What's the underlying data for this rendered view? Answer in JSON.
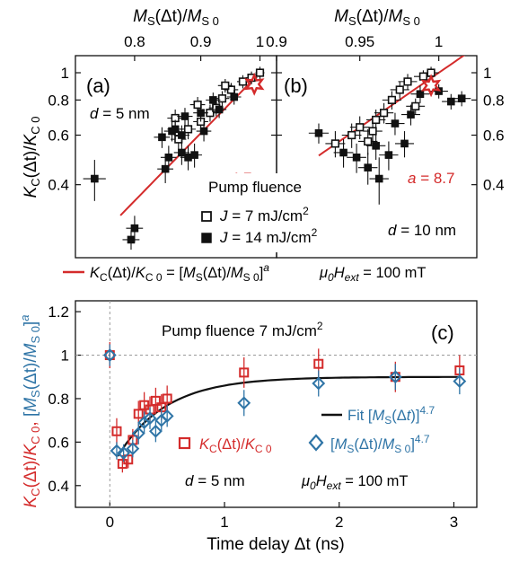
{
  "colors": {
    "red": "#d42b2b",
    "blue": "#2e74a6",
    "black": "#111111",
    "gray": "#999999"
  },
  "chart_data": [
    {
      "id": "a",
      "type": "scatter",
      "panel_label": "(a)",
      "top_axis_label": "M_S(Δt)/M_S0",
      "left_axis_label": "K_C(Δt)/K_C0",
      "x_scale": "log",
      "y_scale": "log",
      "xlim": [
        0.72,
        1.03
      ],
      "ylim": [
        0.22,
        1.15
      ],
      "x_ticks": [
        0.8,
        0.9,
        1
      ],
      "x_tick_labels": [
        "0.8",
        "0.9",
        "1"
      ],
      "y_ticks": [
        0.4,
        0.6,
        0.8,
        1
      ],
      "y_tick_labels": [
        "0.4",
        "0.6",
        "0.8",
        "1"
      ],
      "annotations": {
        "thickness": "d = 5 nm",
        "exponent": "a = 4.7"
      },
      "fit": {
        "exponent": 4.7,
        "x_range": [
          0.78,
          1.0
        ]
      },
      "highlight_point": {
        "x": 0.99,
        "y": 0.91
      },
      "series": [
        {
          "name": "J = 7 mJ/cm²",
          "marker": "open-square",
          "points": [
            {
              "x": 0.865,
              "y": 0.58,
              "ex": 0.012,
              "ey": 0.05
            },
            {
              "x": 0.88,
              "y": 0.63,
              "ex": 0.012,
              "ey": 0.05
            },
            {
              "x": 0.9,
              "y": 0.67,
              "ex": 0.012,
              "ey": 0.05
            },
            {
              "x": 0.915,
              "y": 0.72,
              "ex": 0.012,
              "ey": 0.05
            },
            {
              "x": 0.925,
              "y": 0.75,
              "ex": 0.012,
              "ey": 0.05
            },
            {
              "x": 0.935,
              "y": 0.81,
              "ex": 0.012,
              "ey": 0.05
            },
            {
              "x": 0.95,
              "y": 0.87,
              "ex": 0.012,
              "ey": 0.05
            },
            {
              "x": 0.97,
              "y": 0.93,
              "ex": 0.01,
              "ey": 0.05
            },
            {
              "x": 0.985,
              "y": 0.96,
              "ex": 0.01,
              "ey": 0.05
            },
            {
              "x": 1.0,
              "y": 1.0,
              "ex": 0.008,
              "ey": 0.05
            },
            {
              "x": 0.895,
              "y": 0.77,
              "ex": 0.012,
              "ey": 0.05
            },
            {
              "x": 0.86,
              "y": 0.69,
              "ex": 0.012,
              "ey": 0.05
            },
            {
              "x": 0.94,
              "y": 0.9,
              "ex": 0.012,
              "ey": 0.05
            }
          ]
        },
        {
          "name": "J = 14 mJ/cm²",
          "marker": "filled-square",
          "points": [
            {
              "x": 0.745,
              "y": 0.42,
              "ex": 0.015,
              "ey": 0.07
            },
            {
              "x": 0.8,
              "y": 0.28,
              "ex": 0.012,
              "ey": 0.03
            },
            {
              "x": 0.795,
              "y": 0.255,
              "ex": 0.012,
              "ey": 0.02
            },
            {
              "x": 0.84,
              "y": 0.59,
              "ex": 0.012,
              "ey": 0.05
            },
            {
              "x": 0.85,
              "y": 0.5,
              "ex": 0.012,
              "ey": 0.05
            },
            {
              "x": 0.845,
              "y": 0.455,
              "ex": 0.012,
              "ey": 0.05
            },
            {
              "x": 0.86,
              "y": 0.63,
              "ex": 0.012,
              "ey": 0.05
            },
            {
              "x": 0.87,
              "y": 0.52,
              "ex": 0.012,
              "ey": 0.05
            },
            {
              "x": 0.88,
              "y": 0.5,
              "ex": 0.012,
              "ey": 0.05
            },
            {
              "x": 0.89,
              "y": 0.51,
              "ex": 0.012,
              "ey": 0.05
            },
            {
              "x": 0.875,
              "y": 0.7,
              "ex": 0.012,
              "ey": 0.05
            },
            {
              "x": 0.9,
              "y": 0.72,
              "ex": 0.012,
              "ey": 0.05
            },
            {
              "x": 0.905,
              "y": 0.62,
              "ex": 0.012,
              "ey": 0.05
            },
            {
              "x": 0.92,
              "y": 0.8,
              "ex": 0.012,
              "ey": 0.05
            },
            {
              "x": 0.93,
              "y": 0.74,
              "ex": 0.012,
              "ey": 0.05
            },
            {
              "x": 0.955,
              "y": 0.82,
              "ex": 0.012,
              "ey": 0.05
            },
            {
              "x": 0.87,
              "y": 0.6,
              "ex": 0.012,
              "ey": 0.05
            },
            {
              "x": 0.855,
              "y": 0.62,
              "ex": 0.012,
              "ey": 0.05
            }
          ]
        }
      ]
    },
    {
      "id": "b",
      "type": "scatter",
      "panel_label": "(b)",
      "top_axis_label": "M_S(Δt)/M_S0",
      "x_scale": "log",
      "y_scale": "log",
      "xlim": [
        0.9,
        1.025
      ],
      "ylim": [
        0.22,
        1.15
      ],
      "x_ticks": [
        0.9,
        0.95,
        1
      ],
      "x_tick_labels": [
        "0.9",
        "0.95",
        "1"
      ],
      "y_ticks": [
        0.4,
        0.6,
        0.8,
        1
      ],
      "y_tick_labels": [
        "0.4",
        "0.6",
        "0.8",
        "1"
      ],
      "annotations": {
        "thickness": "d = 10 nm",
        "exponent": "a = 8.7"
      },
      "fit": {
        "exponent": 8.7,
        "x_range": [
          0.925,
          1.02
        ]
      },
      "highlight_point": {
        "x": 0.995,
        "y": 0.9
      },
      "series": [
        {
          "name": "J = 7 mJ/cm²",
          "marker": "open-square",
          "points": [
            {
              "x": 0.935,
              "y": 0.56,
              "ex": 0.006,
              "ey": 0.06
            },
            {
              "x": 0.945,
              "y": 0.6,
              "ex": 0.006,
              "ey": 0.06
            },
            {
              "x": 0.95,
              "y": 0.64,
              "ex": 0.006,
              "ey": 0.06
            },
            {
              "x": 0.955,
              "y": 0.57,
              "ex": 0.006,
              "ey": 0.06
            },
            {
              "x": 0.96,
              "y": 0.68,
              "ex": 0.006,
              "ey": 0.06
            },
            {
              "x": 0.965,
              "y": 0.72,
              "ex": 0.006,
              "ey": 0.06
            },
            {
              "x": 0.97,
              "y": 0.8,
              "ex": 0.006,
              "ey": 0.06
            },
            {
              "x": 0.975,
              "y": 0.87,
              "ex": 0.006,
              "ey": 0.06
            },
            {
              "x": 0.98,
              "y": 0.93,
              "ex": 0.006,
              "ey": 0.06
            },
            {
              "x": 0.985,
              "y": 0.76,
              "ex": 0.006,
              "ey": 0.05
            },
            {
              "x": 0.99,
              "y": 0.97,
              "ex": 0.006,
              "ey": 0.05
            },
            {
              "x": 0.995,
              "y": 1.0,
              "ex": 0.005,
              "ey": 0.05
            },
            {
              "x": 0.958,
              "y": 0.62,
              "ex": 0.006,
              "ey": 0.06
            }
          ]
        },
        {
          "name": "J = 14 mJ/cm²",
          "marker": "filled-square",
          "points": [
            {
              "x": 0.925,
              "y": 0.61,
              "ex": 0.006,
              "ey": 0.05
            },
            {
              "x": 0.94,
              "y": 0.52,
              "ex": 0.006,
              "ey": 0.06
            },
            {
              "x": 0.948,
              "y": 0.5,
              "ex": 0.006,
              "ey": 0.06
            },
            {
              "x": 0.955,
              "y": 0.46,
              "ex": 0.006,
              "ey": 0.06
            },
            {
              "x": 0.96,
              "y": 0.55,
              "ex": 0.006,
              "ey": 0.06
            },
            {
              "x": 0.962,
              "y": 0.42,
              "ex": 0.006,
              "ey": 0.08
            },
            {
              "x": 0.968,
              "y": 0.51,
              "ex": 0.006,
              "ey": 0.06
            },
            {
              "x": 0.972,
              "y": 0.66,
              "ex": 0.006,
              "ey": 0.06
            },
            {
              "x": 0.978,
              "y": 0.56,
              "ex": 0.006,
              "ey": 0.06
            },
            {
              "x": 0.982,
              "y": 0.71,
              "ex": 0.006,
              "ey": 0.06
            },
            {
              "x": 0.988,
              "y": 0.84,
              "ex": 0.006,
              "ey": 0.06
            },
            {
              "x": 1.0,
              "y": 0.86,
              "ex": 0.006,
              "ey": 0.05
            },
            {
              "x": 1.008,
              "y": 0.79,
              "ex": 0.006,
              "ey": 0.05
            },
            {
              "x": 1.015,
              "y": 0.81,
              "ex": 0.006,
              "ey": 0.05
            }
          ]
        }
      ]
    },
    {
      "id": "c",
      "type": "scatter",
      "panel_label": "(c)",
      "title": "Pump fluence 7 mJ/cm²",
      "xlabel": "Time delay Δt (ns)",
      "xlim": [
        -0.3,
        3.2
      ],
      "ylim": [
        0.3,
        1.25
      ],
      "x_ticks": [
        0,
        1,
        2,
        3
      ],
      "x_tick_labels": [
        "0",
        "1",
        "2",
        "3"
      ],
      "y_ticks": [
        0.4,
        0.6,
        0.8,
        1,
        1.2
      ],
      "y_tick_labels": [
        "0.4",
        "0.6",
        "0.8",
        "1",
        "1.2"
      ],
      "reference_lines": {
        "y": 1.0,
        "x": 0
      },
      "fit": {
        "label": "Fit [M_S(Δt)]^4.7",
        "y0": 0.535,
        "y_inf": 0.9,
        "tau": 0.42,
        "t0": 0.07,
        "x_range": [
          0.07,
          3.05
        ]
      },
      "annotations": {
        "thickness": "d = 5 nm",
        "field": "μ0Hext = 100 mT"
      },
      "series": [
        {
          "name": "K_C(Δt)/K_C0",
          "marker": "open-square",
          "color": "#d42b2b",
          "points": [
            {
              "x": 0.0,
              "y": 1.0,
              "ey": 0.06
            },
            {
              "x": 0.06,
              "y": 0.65,
              "ey": 0.06
            },
            {
              "x": 0.11,
              "y": 0.5,
              "ey": 0.04
            },
            {
              "x": 0.16,
              "y": 0.52,
              "ey": 0.04
            },
            {
              "x": 0.2,
              "y": 0.61,
              "ey": 0.05
            },
            {
              "x": 0.25,
              "y": 0.73,
              "ey": 0.06
            },
            {
              "x": 0.3,
              "y": 0.77,
              "ey": 0.06
            },
            {
              "x": 0.35,
              "y": 0.75,
              "ey": 0.06
            },
            {
              "x": 0.4,
              "y": 0.79,
              "ey": 0.06
            },
            {
              "x": 0.45,
              "y": 0.76,
              "ey": 0.06
            },
            {
              "x": 0.5,
              "y": 0.8,
              "ey": 0.06
            },
            {
              "x": 1.17,
              "y": 0.92,
              "ey": 0.07
            },
            {
              "x": 1.82,
              "y": 0.96,
              "ey": 0.07
            },
            {
              "x": 2.49,
              "y": 0.9,
              "ey": 0.07
            },
            {
              "x": 3.05,
              "y": 0.93,
              "ey": 0.07
            }
          ]
        },
        {
          "name": "[M_S(Δt)/M_S0]^4.7",
          "marker": "open-diamond",
          "color": "#2e74a6",
          "points": [
            {
              "x": 0.0,
              "y": 1.0,
              "ey": 0.05
            },
            {
              "x": 0.06,
              "y": 0.56,
              "ey": 0.04
            },
            {
              "x": 0.12,
              "y": 0.55,
              "ey": 0.04
            },
            {
              "x": 0.2,
              "y": 0.57,
              "ey": 0.04
            },
            {
              "x": 0.25,
              "y": 0.64,
              "ey": 0.05
            },
            {
              "x": 0.3,
              "y": 0.69,
              "ey": 0.05
            },
            {
              "x": 0.35,
              "y": 0.71,
              "ey": 0.05
            },
            {
              "x": 0.4,
              "y": 0.65,
              "ey": 0.05
            },
            {
              "x": 0.45,
              "y": 0.7,
              "ey": 0.05
            },
            {
              "x": 0.5,
              "y": 0.72,
              "ey": 0.05
            },
            {
              "x": 1.17,
              "y": 0.78,
              "ey": 0.06
            },
            {
              "x": 1.82,
              "y": 0.87,
              "ey": 0.06
            },
            {
              "x": 2.49,
              "y": 0.9,
              "ey": 0.06
            },
            {
              "x": 3.05,
              "y": 0.88,
              "ey": 0.06
            }
          ]
        }
      ]
    }
  ],
  "legend_ab": {
    "title": "Pump fluence",
    "open_label": "J = 7 mJ/cm²",
    "filled_label": "J = 14 mJ/cm²",
    "fit_label": "K_C(Δt)/K_C0 = [M_S(Δt)/M_S0]^a",
    "field_label": "μ0Hext = 100 mT"
  },
  "legend_c": {
    "red_label": "K_C(Δt)/K_C0",
    "blue_label": "[M_S(Δt)/M_S0]^4.7"
  },
  "left_axis_label_c": "K_C(Δt)/K_C0, [M_S(Δt)/M_S0]^a"
}
